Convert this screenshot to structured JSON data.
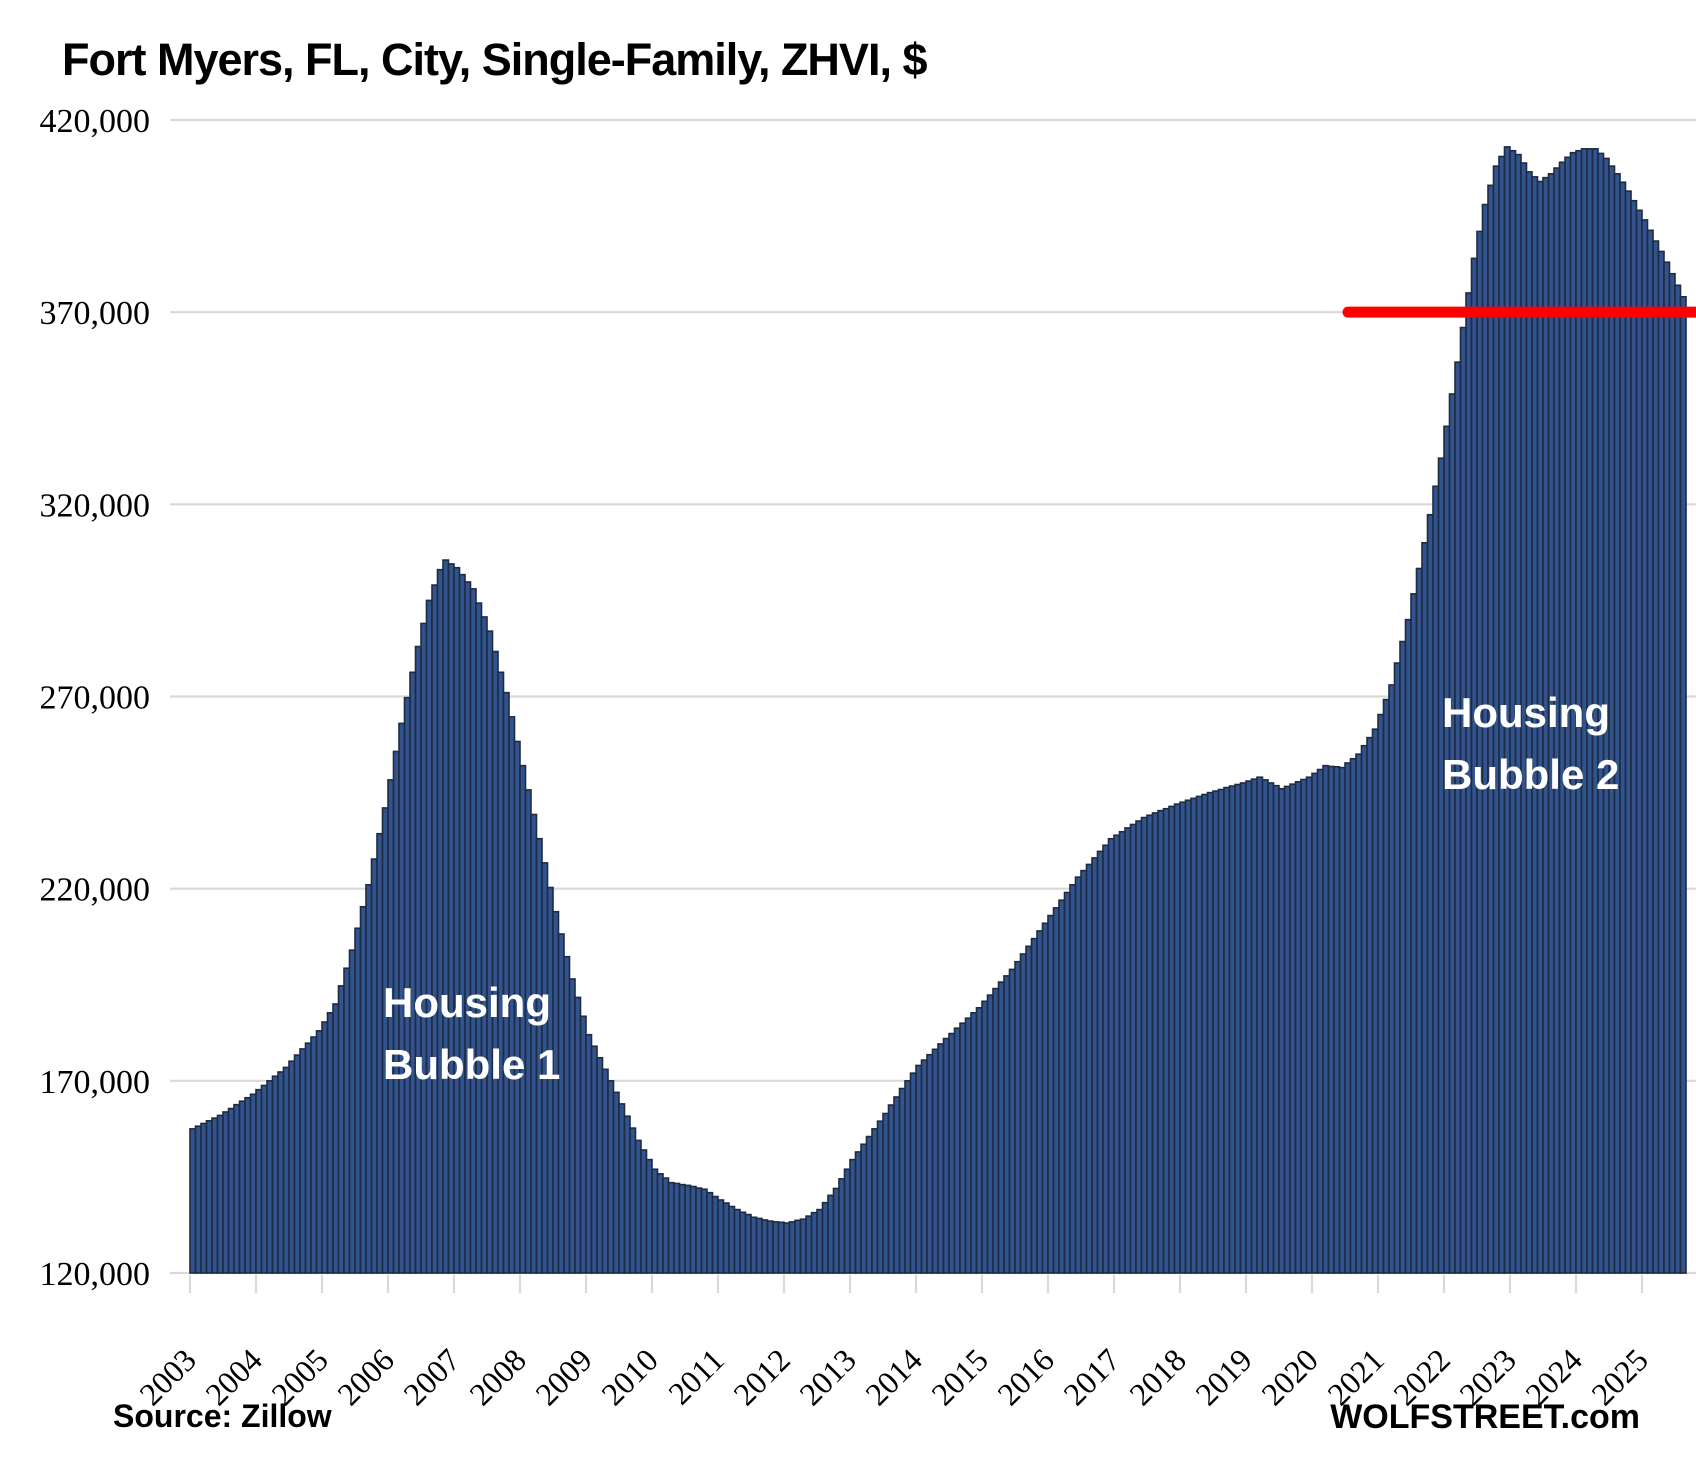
{
  "page": {
    "title": "Fort Myers, FL, City, Single-Family, ZHVI, $",
    "source_note": "Source: Zillow",
    "branding": "WOLFSTREET.com"
  },
  "chart_data": {
    "type": "bar",
    "title": "Fort Myers, FL, City, Single-Family, ZHVI, $",
    "unit": "USD",
    "frequency": "monthly",
    "start": "2003-01",
    "end": "2025-08",
    "ylim": [
      120000,
      420000
    ],
    "gridline_step": 50000,
    "grid": "horizontal",
    "legend": "none",
    "y_tick_labels": [
      "420,000",
      "370,000",
      "320,000",
      "270,000",
      "220,000",
      "170,000",
      "120,000"
    ],
    "x_tick_labels": [
      "2003",
      "2004",
      "2005",
      "2006",
      "2007",
      "2008",
      "2009",
      "2010",
      "2011",
      "2012",
      "2013",
      "2014",
      "2015",
      "2016",
      "2017",
      "2018",
      "2019",
      "2020",
      "2021",
      "2022",
      "2023",
      "2024",
      "2025"
    ],
    "annotations": [
      {
        "line1": "Housing",
        "line2": "Bubble 1",
        "color": "#ffffff"
      },
      {
        "line1": "Housing",
        "line2": "Bubble 2",
        "color": "#ffffff"
      }
    ],
    "reference_line": {
      "value": 370000,
      "color": "#ff0000"
    },
    "colors": {
      "bar_fill": "#31548f",
      "bar_border": "#1e2b40",
      "gridline": "#d9d9d9",
      "text": "#000000",
      "annotation_text": "#ffffff",
      "reference_line": "#ff0000"
    },
    "values": [
      157500,
      158200,
      158900,
      159600,
      160300,
      161000,
      161900,
      162800,
      163800,
      164700,
      165600,
      166500,
      167700,
      168800,
      170000,
      171200,
      172300,
      173500,
      175100,
      176700,
      178300,
      179800,
      181400,
      183000,
      185300,
      187700,
      190000,
      194700,
      199300,
      204000,
      209700,
      215300,
      221000,
      227700,
      234300,
      241000,
      248300,
      255700,
      263000,
      269700,
      276300,
      283000,
      289000,
      295000,
      299000,
      303000,
      305500,
      304500,
      303500,
      301700,
      299800,
      298000,
      294300,
      290700,
      287000,
      281700,
      276300,
      271000,
      264700,
      258300,
      252000,
      245700,
      239300,
      233000,
      226700,
      220300,
      214000,
      208200,
      202300,
      196500,
      191700,
      186800,
      182000,
      179000,
      176000,
      173000,
      170000,
      167000,
      164000,
      160800,
      157700,
      154500,
      152000,
      149500,
      147000,
      145800,
      144700,
      143500,
      143300,
      143000,
      142800,
      142500,
      142100,
      141800,
      140900,
      139900,
      139000,
      138200,
      137300,
      136500,
      135800,
      135200,
      134500,
      134200,
      133800,
      133500,
      133300,
      133200,
      133000,
      133300,
      133700,
      134000,
      134800,
      135700,
      136500,
      138300,
      140200,
      142000,
      144500,
      147000,
      149500,
      151500,
      153500,
      155500,
      157500,
      159500,
      161500,
      163700,
      165800,
      168000,
      170000,
      172000,
      174000,
      175400,
      176800,
      178200,
      179600,
      181000,
      182300,
      183700,
      185000,
      186300,
      187700,
      189000,
      190700,
      192300,
      194000,
      195700,
      197300,
      199000,
      201000,
      203000,
      205000,
      207000,
      209000,
      211000,
      213000,
      215000,
      217000,
      219000,
      221000,
      223000,
      224700,
      226300,
      228000,
      229700,
      231300,
      233000,
      233900,
      234800,
      235800,
      236700,
      237600,
      238500,
      239100,
      239700,
      240300,
      240800,
      241400,
      242000,
      242500,
      243000,
      243500,
      244000,
      244500,
      245000,
      245400,
      245800,
      246300,
      246700,
      247100,
      247500,
      248000,
      248500,
      249000,
      248300,
      247500,
      246800,
      246000,
      246600,
      247200,
      247800,
      248400,
      249000,
      250000,
      251000,
      252000,
      251800,
      251700,
      251500,
      252700,
      253800,
      255000,
      257200,
      259300,
      261500,
      265300,
      269200,
      273000,
      278700,
      284300,
      290000,
      296700,
      303300,
      310000,
      317300,
      324700,
      332000,
      340300,
      348700,
      357000,
      366000,
      375000,
      384000,
      391000,
      398000,
      403000,
      408000,
      410500,
      413000,
      412000,
      411000,
      408800,
      406500,
      405200,
      404000,
      405000,
      406000,
      407500,
      409000,
      410300,
      411500,
      412000,
      412500,
      412500,
      412500,
      411300,
      410000,
      408000,
      406000,
      403800,
      401500,
      399000,
      396500,
      394000,
      391300,
      388500,
      385800,
      383000,
      380000,
      377000,
      374000
    ]
  }
}
